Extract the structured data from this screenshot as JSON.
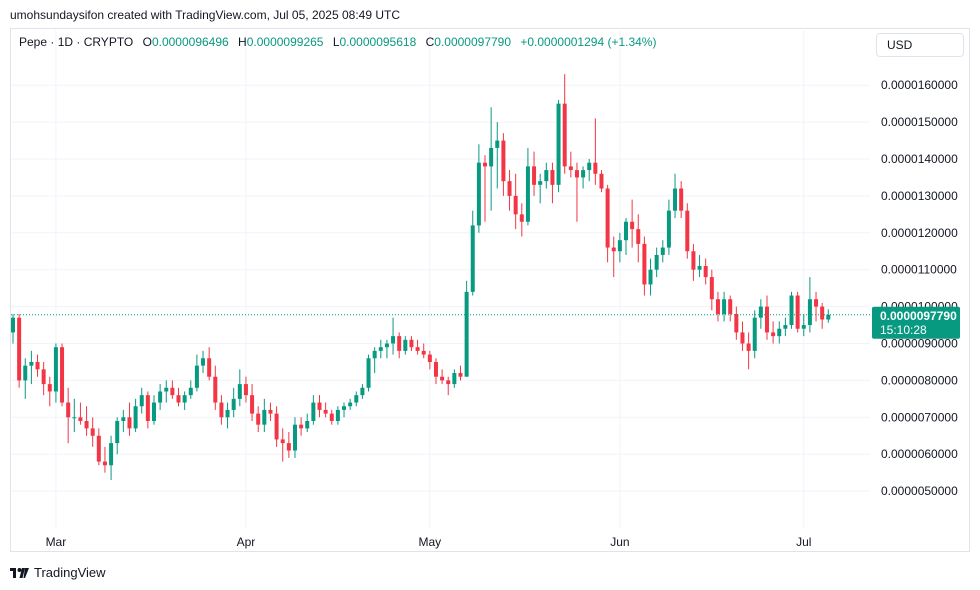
{
  "header": {
    "attribution": "umohsundaysifon created with TradingView.com, Jul 05, 2025 08:49 UTC"
  },
  "legend": {
    "symbol": "Pepe · 1D · CRYPTO",
    "o_label": "O",
    "o_value": "0.0000096496",
    "h_label": "H",
    "h_value": "0.0000099265",
    "l_label": "L",
    "l_value": "0.0000095618",
    "c_label": "C",
    "c_value": "0.0000097790",
    "change": "+0.0000001294 (+1.34%)"
  },
  "currency_button": "USD",
  "price_tag": {
    "price": "0.0000097790",
    "countdown": "15:10:28"
  },
  "footer": {
    "brand": "TradingView"
  },
  "colors": {
    "up": "#089981",
    "down": "#f23645",
    "grid": "#f0f3fa",
    "axis_text": "#131722"
  },
  "chart_data": {
    "type": "candlestick",
    "x_labels": [
      "Mar",
      "Apr",
      "May",
      "Jun",
      "Jul"
    ],
    "x_label_dates": [
      "2025-03-01",
      "2025-04-01",
      "2025-05-01",
      "2025-06-01",
      "2025-07-01"
    ],
    "y_ticks": [
      "0.0000050000",
      "0.0000060000",
      "0.0000070000",
      "0.0000080000",
      "0.0000090000",
      "0.0000100000",
      "0.0000110000",
      "0.0000120000",
      "0.0000130000",
      "0.0000140000",
      "0.0000150000",
      "0.0000160000"
    ],
    "y_tick_values": [
      5e-06,
      6e-06,
      7e-06,
      8e-06,
      9e-06,
      1e-05,
      1.1e-05,
      1.2e-05,
      1.3e-05,
      1.4e-05,
      1.5e-05,
      1.6e-05
    ],
    "ylim": [
      4e-06,
      1.69e-05
    ],
    "last_price": 9.779e-06,
    "candles": [
      {
        "date": "2025-02-22",
        "o": 9.3,
        "h": 9.8,
        "l": 9.0,
        "c": 9.7
      },
      {
        "date": "2025-02-23",
        "o": 9.7,
        "h": 9.8,
        "l": 7.8,
        "c": 8.0
      },
      {
        "date": "2025-02-24",
        "o": 8.0,
        "h": 8.6,
        "l": 7.5,
        "c": 8.4
      },
      {
        "date": "2025-02-25",
        "o": 8.4,
        "h": 8.8,
        "l": 7.9,
        "c": 8.5
      },
      {
        "date": "2025-02-26",
        "o": 8.5,
        "h": 8.7,
        "l": 8.1,
        "c": 8.3
      },
      {
        "date": "2025-02-27",
        "o": 8.3,
        "h": 8.5,
        "l": 7.6,
        "c": 7.9
      },
      {
        "date": "2025-02-28",
        "o": 7.9,
        "h": 8.1,
        "l": 7.3,
        "c": 7.7
      },
      {
        "date": "2025-03-01",
        "o": 7.7,
        "h": 9.0,
        "l": 7.4,
        "c": 8.9
      },
      {
        "date": "2025-03-02",
        "o": 8.9,
        "h": 9.0,
        "l": 7.3,
        "c": 7.4
      },
      {
        "date": "2025-03-03",
        "o": 7.4,
        "h": 7.8,
        "l": 6.3,
        "c": 7.0
      },
      {
        "date": "2025-03-04",
        "o": 7.0,
        "h": 7.5,
        "l": 6.6,
        "c": 7.0
      },
      {
        "date": "2025-03-05",
        "o": 7.0,
        "h": 7.4,
        "l": 6.8,
        "c": 6.9
      },
      {
        "date": "2025-03-06",
        "o": 6.9,
        "h": 7.3,
        "l": 6.5,
        "c": 6.7
      },
      {
        "date": "2025-03-07",
        "o": 6.7,
        "h": 7.0,
        "l": 6.2,
        "c": 6.5
      },
      {
        "date": "2025-03-08",
        "o": 6.5,
        "h": 6.7,
        "l": 5.7,
        "c": 5.8
      },
      {
        "date": "2025-03-09",
        "o": 5.8,
        "h": 6.2,
        "l": 5.5,
        "c": 5.7
      },
      {
        "date": "2025-03-10",
        "o": 5.7,
        "h": 6.5,
        "l": 5.3,
        "c": 6.3
      },
      {
        "date": "2025-03-11",
        "o": 6.3,
        "h": 7.0,
        "l": 6.0,
        "c": 6.9
      },
      {
        "date": "2025-03-12",
        "o": 6.9,
        "h": 7.2,
        "l": 6.6,
        "c": 7.0
      },
      {
        "date": "2025-03-13",
        "o": 7.0,
        "h": 7.4,
        "l": 6.5,
        "c": 6.7
      },
      {
        "date": "2025-03-14",
        "o": 6.7,
        "h": 7.5,
        "l": 6.6,
        "c": 7.3
      },
      {
        "date": "2025-03-15",
        "o": 7.3,
        "h": 7.8,
        "l": 7.1,
        "c": 7.6
      },
      {
        "date": "2025-03-16",
        "o": 7.6,
        "h": 7.7,
        "l": 6.7,
        "c": 6.9
      },
      {
        "date": "2025-03-17",
        "o": 6.9,
        "h": 7.6,
        "l": 6.8,
        "c": 7.4
      },
      {
        "date": "2025-03-18",
        "o": 7.4,
        "h": 7.9,
        "l": 7.2,
        "c": 7.7
      },
      {
        "date": "2025-03-19",
        "o": 7.7,
        "h": 8.0,
        "l": 7.4,
        "c": 7.8
      },
      {
        "date": "2025-03-20",
        "o": 7.8,
        "h": 8.0,
        "l": 7.5,
        "c": 7.6
      },
      {
        "date": "2025-03-21",
        "o": 7.6,
        "h": 7.8,
        "l": 7.3,
        "c": 7.4
      },
      {
        "date": "2025-03-22",
        "o": 7.4,
        "h": 7.7,
        "l": 7.2,
        "c": 7.6
      },
      {
        "date": "2025-03-23",
        "o": 7.6,
        "h": 8.0,
        "l": 7.5,
        "c": 7.8
      },
      {
        "date": "2025-03-24",
        "o": 7.8,
        "h": 8.7,
        "l": 7.7,
        "c": 8.4
      },
      {
        "date": "2025-03-25",
        "o": 8.4,
        "h": 8.8,
        "l": 8.2,
        "c": 8.6
      },
      {
        "date": "2025-03-26",
        "o": 8.6,
        "h": 8.9,
        "l": 8.0,
        "c": 8.1
      },
      {
        "date": "2025-03-27",
        "o": 8.1,
        "h": 8.4,
        "l": 7.2,
        "c": 7.4
      },
      {
        "date": "2025-03-28",
        "o": 7.4,
        "h": 7.6,
        "l": 6.8,
        "c": 7.0
      },
      {
        "date": "2025-03-29",
        "o": 7.0,
        "h": 7.4,
        "l": 6.7,
        "c": 7.2
      },
      {
        "date": "2025-03-30",
        "o": 7.2,
        "h": 7.8,
        "l": 7.0,
        "c": 7.5
      },
      {
        "date": "2025-03-31",
        "o": 7.5,
        "h": 8.3,
        "l": 7.3,
        "c": 7.9
      },
      {
        "date": "2025-04-01",
        "o": 7.9,
        "h": 8.1,
        "l": 7.4,
        "c": 7.6
      },
      {
        "date": "2025-04-02",
        "o": 7.6,
        "h": 7.9,
        "l": 6.9,
        "c": 7.1
      },
      {
        "date": "2025-04-03",
        "o": 7.1,
        "h": 7.3,
        "l": 6.6,
        "c": 6.8
      },
      {
        "date": "2025-04-04",
        "o": 6.8,
        "h": 7.5,
        "l": 6.6,
        "c": 7.2
      },
      {
        "date": "2025-04-05",
        "o": 7.2,
        "h": 7.4,
        "l": 6.9,
        "c": 7.1
      },
      {
        "date": "2025-04-06",
        "o": 7.1,
        "h": 7.3,
        "l": 6.2,
        "c": 6.4
      },
      {
        "date": "2025-04-07",
        "o": 6.4,
        "h": 6.7,
        "l": 5.8,
        "c": 6.3
      },
      {
        "date": "2025-04-08",
        "o": 6.3,
        "h": 6.6,
        "l": 5.9,
        "c": 6.1
      },
      {
        "date": "2025-04-09",
        "o": 6.1,
        "h": 7.0,
        "l": 5.9,
        "c": 6.8
      },
      {
        "date": "2025-04-10",
        "o": 6.8,
        "h": 7.0,
        "l": 6.5,
        "c": 6.7
      },
      {
        "date": "2025-04-11",
        "o": 6.7,
        "h": 7.1,
        "l": 6.6,
        "c": 6.9
      },
      {
        "date": "2025-04-12",
        "o": 6.9,
        "h": 7.6,
        "l": 6.8,
        "c": 7.4
      },
      {
        "date": "2025-04-13",
        "o": 7.4,
        "h": 7.6,
        "l": 7.0,
        "c": 7.2
      },
      {
        "date": "2025-04-14",
        "o": 7.2,
        "h": 7.4,
        "l": 7.0,
        "c": 7.1
      },
      {
        "date": "2025-04-15",
        "o": 7.1,
        "h": 7.2,
        "l": 6.8,
        "c": 6.9
      },
      {
        "date": "2025-04-16",
        "o": 6.9,
        "h": 7.3,
        "l": 6.8,
        "c": 7.2
      },
      {
        "date": "2025-04-17",
        "o": 7.2,
        "h": 7.4,
        "l": 7.0,
        "c": 7.3
      },
      {
        "date": "2025-04-18",
        "o": 7.3,
        "h": 7.5,
        "l": 7.2,
        "c": 7.4
      },
      {
        "date": "2025-04-19",
        "o": 7.4,
        "h": 7.7,
        "l": 7.3,
        "c": 7.6
      },
      {
        "date": "2025-04-20",
        "o": 7.6,
        "h": 7.9,
        "l": 7.5,
        "c": 7.8
      },
      {
        "date": "2025-04-21",
        "o": 7.8,
        "h": 8.7,
        "l": 7.7,
        "c": 8.6
      },
      {
        "date": "2025-04-22",
        "o": 8.6,
        "h": 8.9,
        "l": 8.2,
        "c": 8.8
      },
      {
        "date": "2025-04-23",
        "o": 8.8,
        "h": 9.1,
        "l": 8.6,
        "c": 8.9
      },
      {
        "date": "2025-04-24",
        "o": 8.9,
        "h": 9.1,
        "l": 8.6,
        "c": 9.0
      },
      {
        "date": "2025-04-25",
        "o": 9.0,
        "h": 9.7,
        "l": 8.7,
        "c": 9.2
      },
      {
        "date": "2025-04-26",
        "o": 9.2,
        "h": 9.3,
        "l": 8.6,
        "c": 8.8
      },
      {
        "date": "2025-04-27",
        "o": 8.8,
        "h": 9.2,
        "l": 8.7,
        "c": 9.1
      },
      {
        "date": "2025-04-28",
        "o": 9.1,
        "h": 9.2,
        "l": 8.8,
        "c": 8.9
      },
      {
        "date": "2025-04-29",
        "o": 8.9,
        "h": 9.1,
        "l": 8.7,
        "c": 8.8
      },
      {
        "date": "2025-04-30",
        "o": 8.8,
        "h": 9.0,
        "l": 8.6,
        "c": 8.7
      },
      {
        "date": "2025-05-01",
        "o": 8.7,
        "h": 8.8,
        "l": 8.3,
        "c": 8.5
      },
      {
        "date": "2025-05-02",
        "o": 8.5,
        "h": 8.6,
        "l": 7.9,
        "c": 8.1
      },
      {
        "date": "2025-05-03",
        "o": 8.1,
        "h": 8.3,
        "l": 7.9,
        "c": 8.0
      },
      {
        "date": "2025-05-04",
        "o": 8.0,
        "h": 8.1,
        "l": 7.6,
        "c": 7.9
      },
      {
        "date": "2025-05-05",
        "o": 7.9,
        "h": 8.3,
        "l": 7.8,
        "c": 8.2
      },
      {
        "date": "2025-05-06",
        "o": 8.2,
        "h": 8.4,
        "l": 8.0,
        "c": 8.1
      },
      {
        "date": "2025-05-07",
        "o": 8.1,
        "h": 10.7,
        "l": 8.1,
        "c": 10.4
      },
      {
        "date": "2025-05-08",
        "o": 10.4,
        "h": 12.6,
        "l": 10.3,
        "c": 12.2
      },
      {
        "date": "2025-05-09",
        "o": 12.2,
        "h": 14.4,
        "l": 12.0,
        "c": 13.9
      },
      {
        "date": "2025-05-10",
        "o": 13.9,
        "h": 14.1,
        "l": 12.3,
        "c": 13.8
      },
      {
        "date": "2025-05-11",
        "o": 13.8,
        "h": 15.4,
        "l": 12.6,
        "c": 14.3
      },
      {
        "date": "2025-05-12",
        "o": 14.3,
        "h": 15.0,
        "l": 13.2,
        "c": 14.5
      },
      {
        "date": "2025-05-13",
        "o": 14.5,
        "h": 14.7,
        "l": 13.0,
        "c": 13.4
      },
      {
        "date": "2025-05-14",
        "o": 13.4,
        "h": 13.7,
        "l": 12.6,
        "c": 13.0
      },
      {
        "date": "2025-05-15",
        "o": 13.0,
        "h": 13.6,
        "l": 12.1,
        "c": 12.5
      },
      {
        "date": "2025-05-16",
        "o": 12.5,
        "h": 12.8,
        "l": 11.9,
        "c": 12.3
      },
      {
        "date": "2025-05-17",
        "o": 12.3,
        "h": 14.3,
        "l": 12.2,
        "c": 13.8
      },
      {
        "date": "2025-05-18",
        "o": 13.8,
        "h": 14.2,
        "l": 13.0,
        "c": 13.3
      },
      {
        "date": "2025-05-19",
        "o": 13.3,
        "h": 13.6,
        "l": 12.8,
        "c": 13.4
      },
      {
        "date": "2025-05-20",
        "o": 13.4,
        "h": 13.9,
        "l": 13.2,
        "c": 13.7
      },
      {
        "date": "2025-05-21",
        "o": 13.7,
        "h": 13.9,
        "l": 12.8,
        "c": 13.3
      },
      {
        "date": "2025-05-22",
        "o": 13.3,
        "h": 15.6,
        "l": 13.1,
        "c": 15.5
      },
      {
        "date": "2025-05-23",
        "o": 15.5,
        "h": 16.3,
        "l": 13.6,
        "c": 13.8
      },
      {
        "date": "2025-05-24",
        "o": 13.8,
        "h": 14.2,
        "l": 13.5,
        "c": 13.7
      },
      {
        "date": "2025-05-25",
        "o": 13.7,
        "h": 13.9,
        "l": 12.3,
        "c": 13.5
      },
      {
        "date": "2025-05-26",
        "o": 13.5,
        "h": 13.8,
        "l": 13.2,
        "c": 13.7
      },
      {
        "date": "2025-05-27",
        "o": 13.7,
        "h": 14.0,
        "l": 13.4,
        "c": 13.9
      },
      {
        "date": "2025-05-28",
        "o": 13.9,
        "h": 15.1,
        "l": 13.3,
        "c": 13.6
      },
      {
        "date": "2025-05-29",
        "o": 13.6,
        "h": 13.7,
        "l": 13.1,
        "c": 13.2
      },
      {
        "date": "2025-05-30",
        "o": 13.2,
        "h": 13.3,
        "l": 11.2,
        "c": 11.6
      },
      {
        "date": "2025-05-31",
        "o": 11.6,
        "h": 11.9,
        "l": 10.8,
        "c": 11.5
      },
      {
        "date": "2025-06-01",
        "o": 11.5,
        "h": 12.0,
        "l": 11.2,
        "c": 11.8
      },
      {
        "date": "2025-06-02",
        "o": 11.8,
        "h": 12.4,
        "l": 11.4,
        "c": 12.3
      },
      {
        "date": "2025-06-03",
        "o": 12.3,
        "h": 12.9,
        "l": 11.6,
        "c": 12.1
      },
      {
        "date": "2025-06-04",
        "o": 12.1,
        "h": 12.5,
        "l": 11.2,
        "c": 11.7
      },
      {
        "date": "2025-06-05",
        "o": 11.7,
        "h": 11.9,
        "l": 10.3,
        "c": 10.6
      },
      {
        "date": "2025-06-06",
        "o": 10.6,
        "h": 11.3,
        "l": 10.3,
        "c": 11.0
      },
      {
        "date": "2025-06-07",
        "o": 11.0,
        "h": 11.6,
        "l": 10.8,
        "c": 11.4
      },
      {
        "date": "2025-06-08",
        "o": 11.4,
        "h": 11.8,
        "l": 11.2,
        "c": 11.6
      },
      {
        "date": "2025-06-09",
        "o": 11.6,
        "h": 12.9,
        "l": 11.4,
        "c": 12.6
      },
      {
        "date": "2025-06-10",
        "o": 12.6,
        "h": 13.6,
        "l": 12.4,
        "c": 13.2
      },
      {
        "date": "2025-06-11",
        "o": 13.2,
        "h": 13.4,
        "l": 12.4,
        "c": 12.6
      },
      {
        "date": "2025-06-12",
        "o": 12.6,
        "h": 12.8,
        "l": 11.3,
        "c": 11.5
      },
      {
        "date": "2025-06-13",
        "o": 11.5,
        "h": 11.7,
        "l": 10.7,
        "c": 11.0
      },
      {
        "date": "2025-06-14",
        "o": 11.0,
        "h": 11.4,
        "l": 10.8,
        "c": 11.1
      },
      {
        "date": "2025-06-15",
        "o": 11.1,
        "h": 11.3,
        "l": 10.6,
        "c": 10.8
      },
      {
        "date": "2025-06-16",
        "o": 10.8,
        "h": 11.0,
        "l": 9.9,
        "c": 10.2
      },
      {
        "date": "2025-06-17",
        "o": 10.2,
        "h": 10.4,
        "l": 9.6,
        "c": 9.8
      },
      {
        "date": "2025-06-18",
        "o": 9.8,
        "h": 10.4,
        "l": 9.6,
        "c": 10.2
      },
      {
        "date": "2025-06-19",
        "o": 10.2,
        "h": 10.3,
        "l": 9.6,
        "c": 9.8
      },
      {
        "date": "2025-06-20",
        "o": 9.8,
        "h": 10.0,
        "l": 9.1,
        "c": 9.3
      },
      {
        "date": "2025-06-21",
        "o": 9.3,
        "h": 9.6,
        "l": 8.8,
        "c": 9.0
      },
      {
        "date": "2025-06-22",
        "o": 9.0,
        "h": 9.3,
        "l": 8.3,
        "c": 8.8
      },
      {
        "date": "2025-06-23",
        "o": 8.8,
        "h": 9.9,
        "l": 8.6,
        "c": 9.7
      },
      {
        "date": "2025-06-24",
        "o": 9.7,
        "h": 10.2,
        "l": 9.4,
        "c": 10.0
      },
      {
        "date": "2025-06-25",
        "o": 10.0,
        "h": 10.3,
        "l": 9.1,
        "c": 9.3
      },
      {
        "date": "2025-06-26",
        "o": 9.3,
        "h": 9.6,
        "l": 9.0,
        "c": 9.2
      },
      {
        "date": "2025-06-27",
        "o": 9.2,
        "h": 9.6,
        "l": 9.0,
        "c": 9.4
      },
      {
        "date": "2025-06-28",
        "o": 9.4,
        "h": 9.7,
        "l": 9.2,
        "c": 9.5
      },
      {
        "date": "2025-06-29",
        "o": 9.5,
        "h": 10.4,
        "l": 9.4,
        "c": 10.3
      },
      {
        "date": "2025-06-30",
        "o": 10.3,
        "h": 10.4,
        "l": 9.3,
        "c": 9.4
      },
      {
        "date": "2025-07-01",
        "o": 9.4,
        "h": 9.8,
        "l": 9.2,
        "c": 9.5
      },
      {
        "date": "2025-07-02",
        "o": 9.5,
        "h": 10.8,
        "l": 9.3,
        "c": 10.2
      },
      {
        "date": "2025-07-03",
        "o": 10.2,
        "h": 10.4,
        "l": 9.6,
        "c": 10.0
      },
      {
        "date": "2025-07-04",
        "o": 10.0,
        "h": 10.1,
        "l": 9.4,
        "c": 9.65
      },
      {
        "date": "2025-07-05",
        "o": 9.6496,
        "h": 9.9265,
        "l": 9.5618,
        "c": 9.779
      }
    ]
  }
}
